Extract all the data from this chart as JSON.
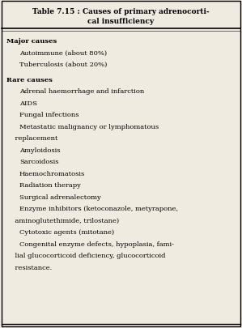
{
  "title_line1": "Table 7.15 : Causes of primary adrenocorti-",
  "title_line2": "cal insufficiency",
  "background_color": "#f0ebe0",
  "border_color": "#000000",
  "text_color": "#000000",
  "font_family": "serif",
  "title_fontsize": 6.5,
  "body_fontsize": 6.0,
  "rows": [
    {
      "text": "Major causes",
      "bold": true,
      "indent": 0,
      "extra_before": 0.008
    },
    {
      "text": "Autoimmune (about 80%)",
      "bold": false,
      "indent": 1,
      "extra_before": 0
    },
    {
      "text": "Tuberculosis (about 20%)",
      "bold": false,
      "indent": 1,
      "extra_before": 0
    },
    {
      "text": "Rare causes",
      "bold": true,
      "indent": 0,
      "extra_before": 0.01
    },
    {
      "text": "Adrenal haemorrhage and infarction",
      "bold": false,
      "indent": 1,
      "extra_before": 0
    },
    {
      "text": "AIDS",
      "bold": false,
      "indent": 1,
      "extra_before": 0
    },
    {
      "text": "Fungal infections",
      "bold": false,
      "indent": 1,
      "extra_before": 0
    },
    {
      "text": "Metastatic malignancy or lymphomatous",
      "bold": false,
      "indent": 1,
      "extra_before": 0
    },
    {
      "text": "    replacement",
      "bold": false,
      "indent": 0,
      "extra_before": 0
    },
    {
      "text": "Amyloidosis",
      "bold": false,
      "indent": 1,
      "extra_before": 0
    },
    {
      "text": "Sarcoidosis",
      "bold": false,
      "indent": 1,
      "extra_before": 0
    },
    {
      "text": "Haemochromatosis",
      "bold": false,
      "indent": 1,
      "extra_before": 0
    },
    {
      "text": "Radiation therapy",
      "bold": false,
      "indent": 1,
      "extra_before": 0
    },
    {
      "text": "Surgical adrenalectomy",
      "bold": false,
      "indent": 1,
      "extra_before": 0
    },
    {
      "text": "Enzyme inhibitors (ketoconazole, metyrapone,",
      "bold": false,
      "indent": 1,
      "extra_before": 0
    },
    {
      "text": "    aminoglutethimide, trilostane)",
      "bold": false,
      "indent": 0,
      "extra_before": 0
    },
    {
      "text": "Cytotoxic agents (mitotane)",
      "bold": false,
      "indent": 1,
      "extra_before": 0
    },
    {
      "text": "Congenital enzyme defects, hypoplasia, fami-",
      "bold": false,
      "indent": 1,
      "extra_before": 0
    },
    {
      "text": "    lial glucocorticoid deficiency, glucocorticoid",
      "bold": false,
      "indent": 0,
      "extra_before": 0
    },
    {
      "text": "    resistance.",
      "bold": false,
      "indent": 0,
      "extra_before": 0
    }
  ]
}
